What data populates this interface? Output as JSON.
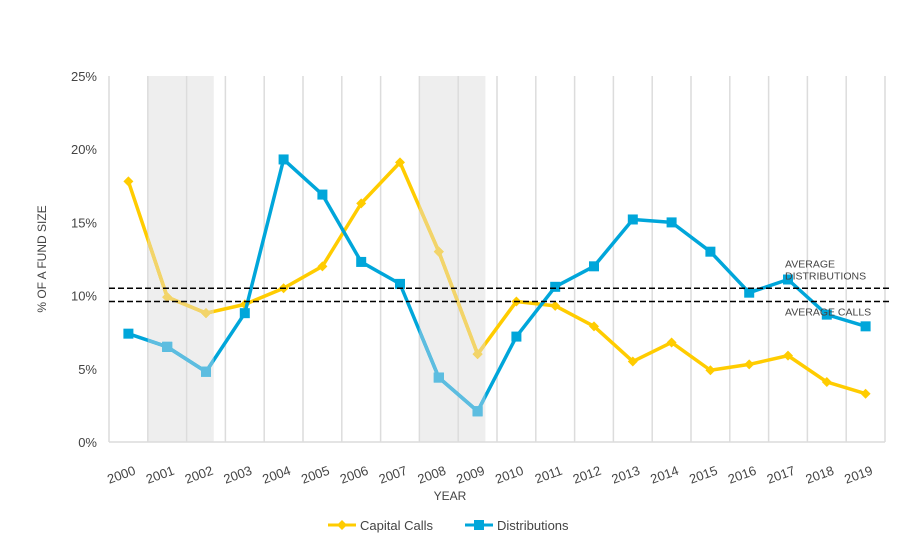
{
  "chart_data": {
    "type": "line",
    "title": "",
    "xlabel": "YEAR",
    "ylabel": "% OF A FUND SIZE",
    "ylim": [
      0,
      25
    ],
    "yticks": [
      "0%",
      "5%",
      "10%",
      "15%",
      "20%",
      "25%"
    ],
    "ytick_values": [
      0,
      5,
      10,
      15,
      20,
      25
    ],
    "categories": [
      "2000",
      "2001",
      "2002",
      "2003",
      "2004",
      "2005",
      "2006",
      "2007",
      "2008",
      "2009",
      "2010",
      "2011",
      "2012",
      "2013",
      "2014",
      "2015",
      "2016",
      "2017",
      "2018",
      "2019"
    ],
    "series": [
      {
        "name": "Capital Calls",
        "color": "#FFCC00",
        "light_color": "#F2D46A",
        "marker": "diamond",
        "values": [
          17.8,
          9.9,
          8.8,
          9.4,
          10.5,
          12.0,
          16.3,
          19.1,
          13.0,
          6.0,
          9.6,
          9.3,
          7.9,
          5.5,
          6.8,
          4.9,
          5.3,
          5.9,
          4.1,
          3.3
        ]
      },
      {
        "name": "Distributions",
        "color": "#00A6DA",
        "light_color": "#5DBDE0",
        "marker": "square",
        "values": [
          7.4,
          6.5,
          4.8,
          8.8,
          19.3,
          16.9,
          12.3,
          10.8,
          4.4,
          2.1,
          7.2,
          10.6,
          12.0,
          15.2,
          15.0,
          13.0,
          10.2,
          11.1,
          8.7,
          7.9
        ]
      }
    ],
    "reference_lines": [
      {
        "label_lines": [
          "AVERAGE",
          "DISTRIBUTIONS"
        ],
        "value": 10.5
      },
      {
        "label_lines": [
          "AVERAGE CALLS"
        ],
        "value": 9.6
      }
    ],
    "shaded_periods": [
      {
        "from": 2000.5,
        "to": 2002.2
      },
      {
        "from": 2007.5,
        "to": 2009.2
      }
    ],
    "legend": "bottom",
    "grid": "vertical"
  }
}
